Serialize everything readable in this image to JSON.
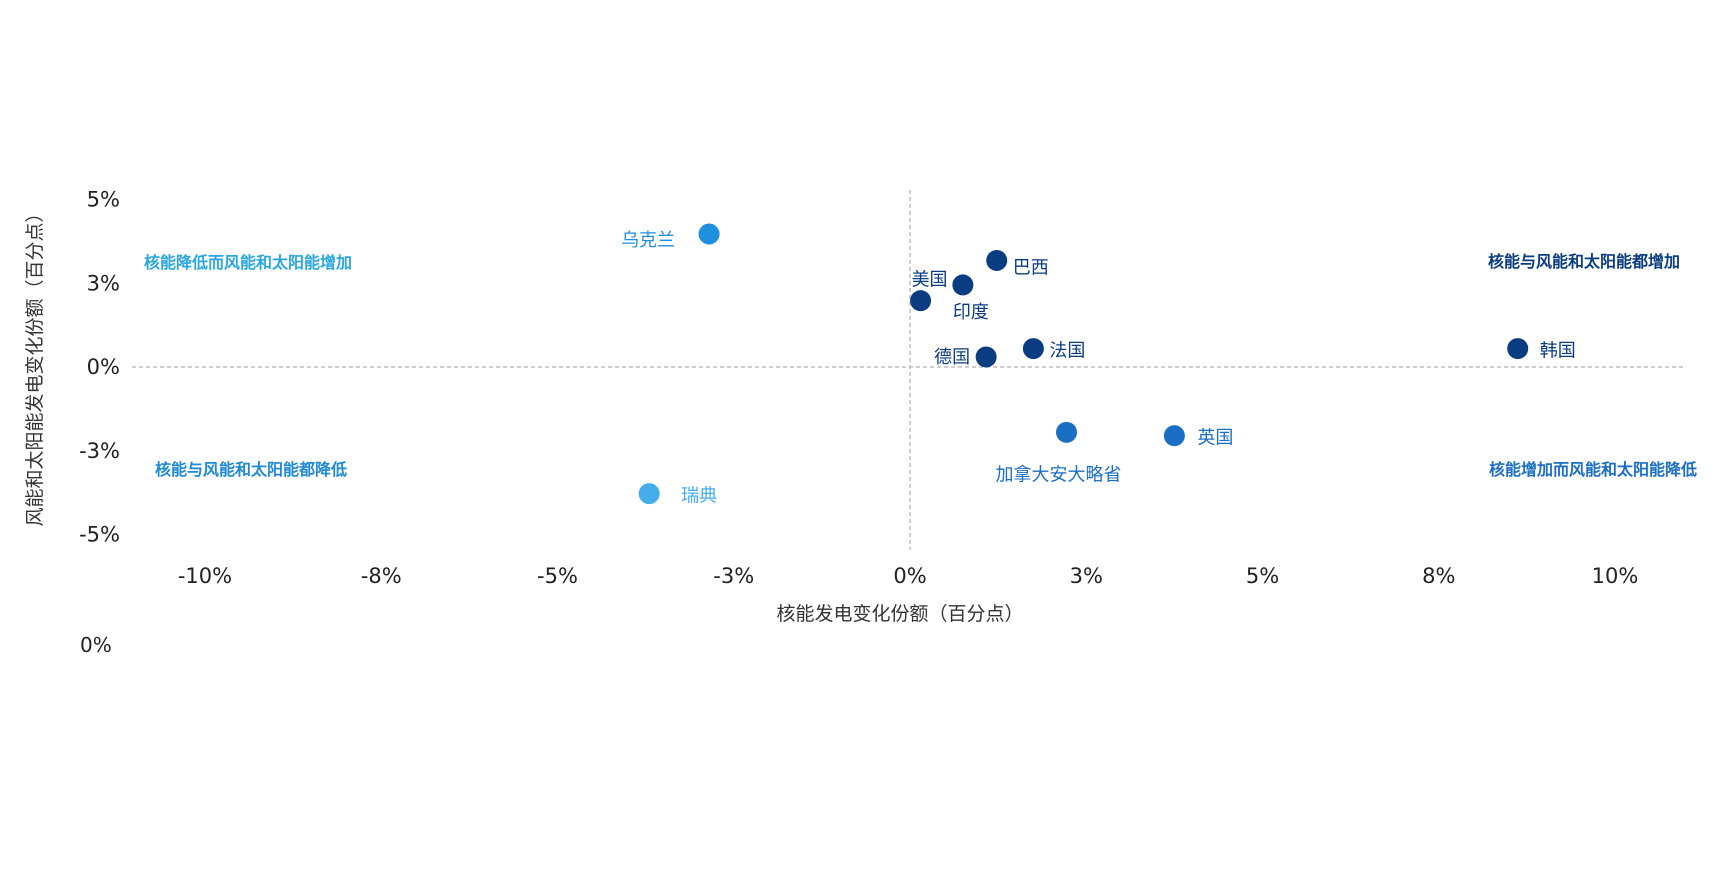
{
  "chart_data": {
    "type": "scatter",
    "title": "",
    "xlabel": "核能发电变化份额（百分点）",
    "ylabel": "风能和太阳能发电变化份额（百分点）",
    "xlim": [
      -10.5,
      11
    ],
    "ylim": [
      -5.3,
      5.3
    ],
    "x_ticks": [
      {
        "value": -10,
        "label": "-10%"
      },
      {
        "value": -7.5,
        "label": "-8%"
      },
      {
        "value": -5,
        "label": "-5%"
      },
      {
        "value": -2.5,
        "label": "-3%"
      },
      {
        "value": 0,
        "label": "0%"
      },
      {
        "value": 2.5,
        "label": "3%"
      },
      {
        "value": 5,
        "label": "5%"
      },
      {
        "value": 7.5,
        "label": "8%"
      },
      {
        "value": 10,
        "label": "10%"
      }
    ],
    "y_ticks": [
      {
        "value": 5,
        "label": "5%"
      },
      {
        "value": 2.5,
        "label": "3%"
      },
      {
        "value": 0,
        "label": "0%"
      },
      {
        "value": -2.5,
        "label": "-3%"
      },
      {
        "value": -5,
        "label": "-5%"
      }
    ],
    "extra_label": "0%",
    "grid": false,
    "points": [
      {
        "name": "乌克兰",
        "x": -2.85,
        "y": 3.97,
        "color": "#1E90E0"
      },
      {
        "name": "美国",
        "x": 0.15,
        "y": 1.98,
        "color": "#0A3C82"
      },
      {
        "name": "印度",
        "x": 0.75,
        "y": 2.45,
        "color": "#0A3C82"
      },
      {
        "name": "巴西",
        "x": 1.23,
        "y": 3.18,
        "color": "#0A3C82"
      },
      {
        "name": "德国",
        "x": 1.08,
        "y": 0.3,
        "color": "#0A3C82"
      },
      {
        "name": "法国",
        "x": 1.75,
        "y": 0.55,
        "color": "#0A3C82"
      },
      {
        "name": "韩国",
        "x": 8.62,
        "y": 0.55,
        "color": "#0A3C82"
      },
      {
        "name": "加拿大安大略省",
        "x": 2.22,
        "y": -1.95,
        "color": "#1A6FC4"
      },
      {
        "name": "英国",
        "x": 3.75,
        "y": -2.05,
        "color": "#1A6FC4"
      },
      {
        "name": "瑞典",
        "x": -3.7,
        "y": -3.78,
        "color": "#45AEEA"
      }
    ],
    "quadrant_labels": [
      {
        "text": "核能降低而风能和太阳能增加",
        "color": "#2AA6E0"
      },
      {
        "text": "核能与风能和太阳能都增加",
        "color": "#0A3C82"
      },
      {
        "text": "核能与风能和太阳能都降低",
        "color": "#1E8AD6"
      },
      {
        "text": "核能增加而风能和太阳能降低",
        "color": "#1A6FC4"
      }
    ]
  }
}
